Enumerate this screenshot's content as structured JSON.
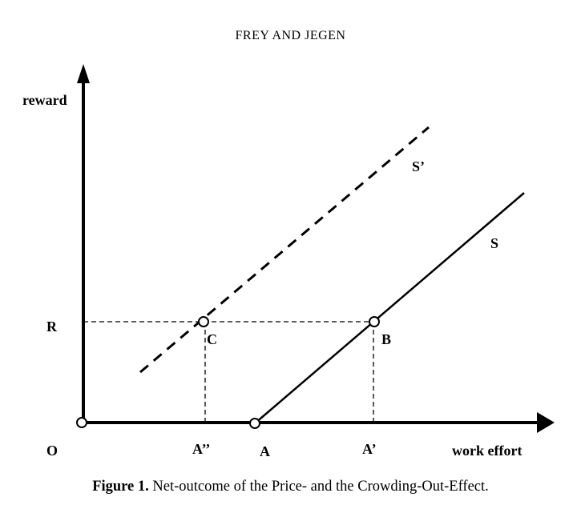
{
  "header": {
    "running_title": "FREY AND JEGEN"
  },
  "figure": {
    "y_axis_label": "reward",
    "x_axis_label": "work effort",
    "origin_label": "O",
    "reward_level_label": "R",
    "point_c_label": "C",
    "point_b_label": "B",
    "tick_a_double_prime": "A’’",
    "tick_a": "A",
    "tick_a_prime": "A’",
    "curve_s_label": "S",
    "curve_s_prime_label": "S’"
  },
  "caption": {
    "label": "Figure 1.",
    "text": " Net-outcome of the Price- and the Crowding-Out-Effect."
  }
}
